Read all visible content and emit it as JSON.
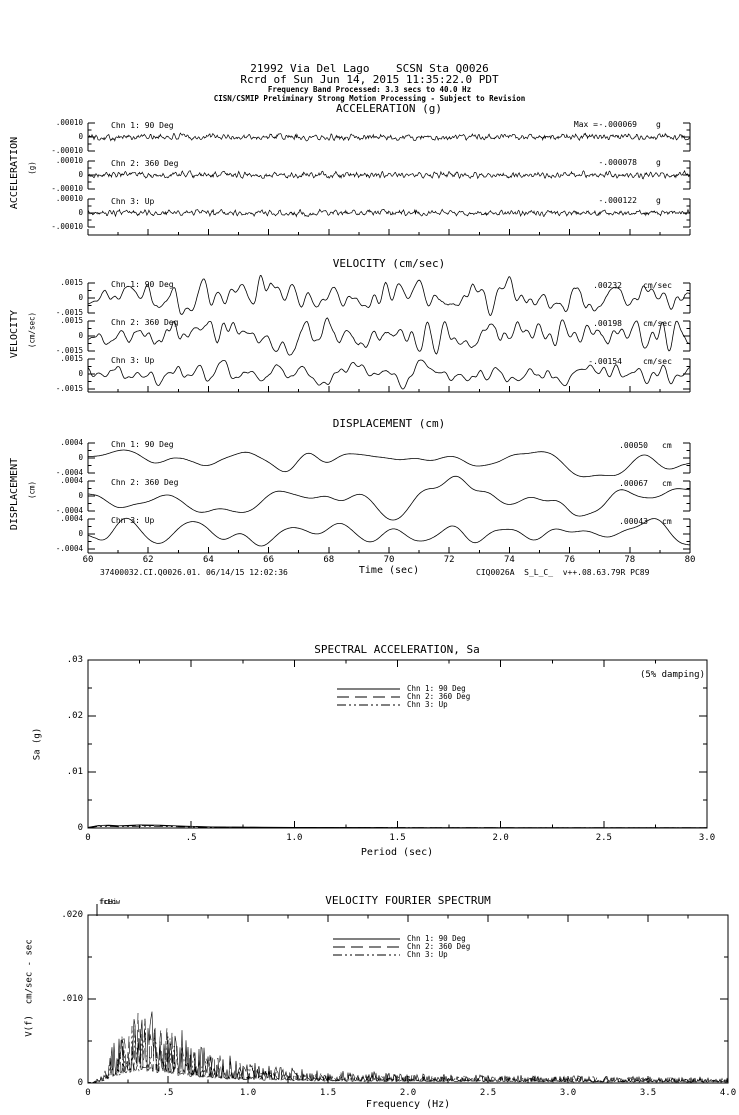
{
  "header": {
    "line1": "21992 Via Del Lago    SCSN Sta Q0026",
    "line2": "Rcrd of Sun Jun 14, 2015 11:35:22.0 PDT",
    "line3": "Frequency Band Processed: 3.3 secs to 40.0 Hz",
    "line4": "CISN/CSMIP Preliminary Strong Motion Processing - Subject to Revision"
  },
  "footer": {
    "left": "37400032.CI.Q0026.01. 06/14/15 12:02:36",
    "xaxis_label": "Time (sec)",
    "right": "CIQ0026A  S_L_C_  v++.08.63.79R PC89"
  },
  "chart_data": [
    {
      "id": "acceleration_time_series",
      "type": "line",
      "title": "ACCELERATION (g)",
      "ylabel": "ACCELERATION",
      "yunits": "(g)",
      "xlim": [
        60,
        80
      ],
      "ylim_per_channel": [
        -0.0001,
        0.0001
      ],
      "yticks": [
        ".00010",
        "0",
        "-.00010"
      ],
      "xticks": [
        "60",
        "62",
        "64",
        "66",
        "68",
        "70",
        "72",
        "74",
        "76",
        "78",
        "80"
      ],
      "series": [
        {
          "name": "Chn 1: 90 Deg",
          "max_prefix": "Max =",
          "value": "-.000069",
          "units": "g",
          "peak_g": -6.9e-05,
          "synth": {
            "seed": 101,
            "rel_peak": 0.28,
            "spikes": [
              {
                "t": 66.9,
                "amp": 0.55
              }
            ]
          }
        },
        {
          "name": "Chn 2: 360 Deg",
          "value": "-.000078",
          "units": "g",
          "peak_g": -7.8e-05,
          "synth": {
            "seed": 202,
            "rel_peak": 0.3,
            "spikes": []
          }
        },
        {
          "name": "Chn 3: Up",
          "value": "-.000122",
          "units": "g",
          "peak_g": -0.000122,
          "synth": {
            "seed": 303,
            "rel_peak": 0.26,
            "spikes": [
              {
                "t": 64.15,
                "amp": 1.0
              },
              {
                "t": 68.4,
                "amp": 0.35
              },
              {
                "t": 70.85,
                "amp": 0.8
              },
              {
                "t": 75.6,
                "amp": 0.45
              }
            ]
          }
        }
      ]
    },
    {
      "id": "velocity_time_series",
      "type": "line",
      "title": "VELOCITY (cm/sec)",
      "ylabel": "VELOCITY",
      "yunits": "(cm/sec)",
      "xlim": [
        60,
        80
      ],
      "ylim_per_channel": [
        -0.0015,
        0.0015
      ],
      "yticks": [
        ".0015",
        "0",
        "-.0015"
      ],
      "xticks": [
        "60",
        "62",
        "64",
        "66",
        "68",
        "70",
        "72",
        "74",
        "76",
        "78",
        "80"
      ],
      "series": [
        {
          "name": "Chn 1: 90 Deg",
          "value": ".00232",
          "units": "cm/sec",
          "peak_cms": 0.00232,
          "synth": {
            "seed": 404,
            "rel_peak": 1.5,
            "spikes": []
          }
        },
        {
          "name": "Chn 2: 360 Deg",
          "value": ".00198",
          "units": "cm/sec",
          "peak_cms": 0.00198,
          "synth": {
            "seed": 505,
            "rel_peak": 1.28,
            "spikes": []
          }
        },
        {
          "name": "Chn 3: Up",
          "value": "-.00154",
          "units": "cm/sec",
          "peak_cms": -0.00154,
          "synth": {
            "seed": 606,
            "rel_peak": 1.0,
            "spikes": []
          }
        }
      ]
    },
    {
      "id": "displacement_time_series",
      "type": "line",
      "title": "DISPLACEMENT (cm)",
      "ylabel": "DISPLACEMENT",
      "yunits": "(cm)",
      "xlim": [
        60,
        80
      ],
      "ylim_per_channel": [
        -0.0004,
        0.0004
      ],
      "yticks": [
        ".0004",
        "0",
        "-.0004"
      ],
      "xticks": [
        "60",
        "62",
        "64",
        "66",
        "68",
        "70",
        "72",
        "74",
        "76",
        "78",
        "80"
      ],
      "xlabel": "Time (sec)",
      "series": [
        {
          "name": "Chn 1: 90 Deg",
          "value": ".00050",
          "units": "cm",
          "peak_cm": 0.0005,
          "synth": {
            "seed": 707,
            "rel_peak": 1.25,
            "spikes": []
          }
        },
        {
          "name": "Chn 2: 360 Deg",
          "value": ".00067",
          "units": "cm",
          "peak_cm": 0.00067,
          "synth": {
            "seed": 808,
            "rel_peak": 1.6,
            "spikes": []
          }
        },
        {
          "name": "Chn 3: Up",
          "value": ".00043",
          "units": "cm",
          "peak_cm": 0.00043,
          "synth": {
            "seed": 909,
            "rel_peak": 1.05,
            "spikes": []
          }
        }
      ]
    },
    {
      "id": "spectral_acceleration",
      "type": "line",
      "title": "SPECTRAL ACCELERATION, Sa",
      "annotation": "(5% damping)",
      "xlabel": "Period (sec)",
      "ylabel": "Sa (g)",
      "xlim": [
        0,
        3.0
      ],
      "ylim": [
        0,
        0.03
      ],
      "xticks": [
        "0",
        ".5",
        "1.0",
        "1.5",
        "2.0",
        "2.5",
        "3.0"
      ],
      "yticks": [
        "0",
        ".01",
        ".02",
        ".03"
      ],
      "legend": [
        "Chn 1: 90 Deg",
        "Chn 2: 360 Deg",
        "Chn 3: Up"
      ],
      "period_points": [
        0,
        0.05,
        0.1,
        0.15,
        0.25,
        0.35,
        0.45,
        0.6,
        0.8,
        1.0,
        1.5,
        2.0,
        2.5,
        3.0
      ],
      "sa_values_g": [
        0.0001,
        0.00045,
        0.0005,
        0.0004,
        0.00055,
        0.0005,
        0.00035,
        0.0002,
        0.00015,
        0.0001,
        8e-05,
        6e-05,
        5e-05,
        5e-05
      ],
      "series": [
        {
          "name": "Chn 1: 90 Deg",
          "scale": 1.0
        },
        {
          "name": "Chn 2: 360 Deg",
          "scale": 0.85
        },
        {
          "name": "Chn 3: Up",
          "scale": 0.6
        }
      ]
    },
    {
      "id": "velocity_fourier_spectrum",
      "type": "line",
      "title": "VELOCITY FOURIER SPECTRUM",
      "xlabel": "Frequency (Hz)",
      "ylabel": "V(f)  cm/sec - sec",
      "xlim": [
        0,
        4.0
      ],
      "ylim": [
        0,
        0.02
      ],
      "xticks": [
        "0",
        ".5",
        "1.0",
        "1.5",
        "2.0",
        "2.5",
        "3.0",
        "3.5",
        "4.0"
      ],
      "yticks": [
        "0",
        ".010",
        ".020"
      ],
      "legend": [
        "Chn 1: 90 Deg",
        "Chn 2: 360 Deg",
        "Chn 3: Up"
      ],
      "corner_freq_labels": [
        "fcLow",
        "fcHi"
      ],
      "envelope_points": [
        [
          0.03,
          0.0001
        ],
        [
          0.08,
          0.001
        ],
        [
          0.12,
          0.003
        ],
        [
          0.18,
          0.006
        ],
        [
          0.25,
          0.0085
        ],
        [
          0.35,
          0.01
        ],
        [
          0.45,
          0.008
        ],
        [
          0.55,
          0.0065
        ],
        [
          0.7,
          0.0045
        ],
        [
          0.9,
          0.003
        ],
        [
          1.1,
          0.0022
        ],
        [
          1.4,
          0.0016
        ],
        [
          1.8,
          0.0013
        ],
        [
          2.2,
          0.0011
        ],
        [
          2.6,
          0.001
        ],
        [
          3.0,
          0.0009
        ],
        [
          3.5,
          0.0008
        ],
        [
          4.0,
          0.0007
        ]
      ],
      "peak_value": 0.01,
      "series": [
        {
          "name": "Chn 1: 90 Deg",
          "scale": 1.0,
          "synth": {
            "seed": 111
          }
        },
        {
          "name": "Chn 2: 360 Deg",
          "scale": 0.92,
          "synth": {
            "seed": 222
          }
        },
        {
          "name": "Chn 3: Up",
          "scale": 0.8,
          "synth": {
            "seed": 333
          }
        }
      ]
    }
  ]
}
